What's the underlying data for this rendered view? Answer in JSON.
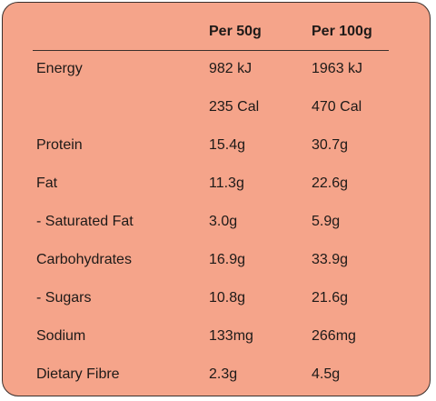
{
  "table": {
    "headers": [
      "",
      "Per 50g",
      "Per 100g"
    ],
    "rows": [
      {
        "nutrient": "Energy",
        "per50": "982 kJ",
        "per100": "1963 kJ"
      },
      {
        "nutrient": "",
        "per50": "235 Cal",
        "per100": "470 Cal"
      },
      {
        "nutrient": "Protein",
        "per50": "15.4g",
        "per100": "30.7g"
      },
      {
        "nutrient": "Fat",
        "per50": "11.3g",
        "per100": "22.6g"
      },
      {
        "nutrient": "- Saturated Fat",
        "per50": "3.0g",
        "per100": "5.9g"
      },
      {
        "nutrient": "Carbohydrates",
        "per50": "16.9g",
        "per100": "33.9g"
      },
      {
        "nutrient": "- Sugars",
        "per50": "10.8g",
        "per100": "21.6g"
      },
      {
        "nutrient": "Sodium",
        "per50": "133mg",
        "per100": "266mg"
      },
      {
        "nutrient": "Dietary Fibre",
        "per50": "2.3g",
        "per100": "4.5g"
      }
    ]
  },
  "colors": {
    "card_background": "#f5a48a",
    "border": "#3b302c",
    "text": "#1e1a18"
  }
}
